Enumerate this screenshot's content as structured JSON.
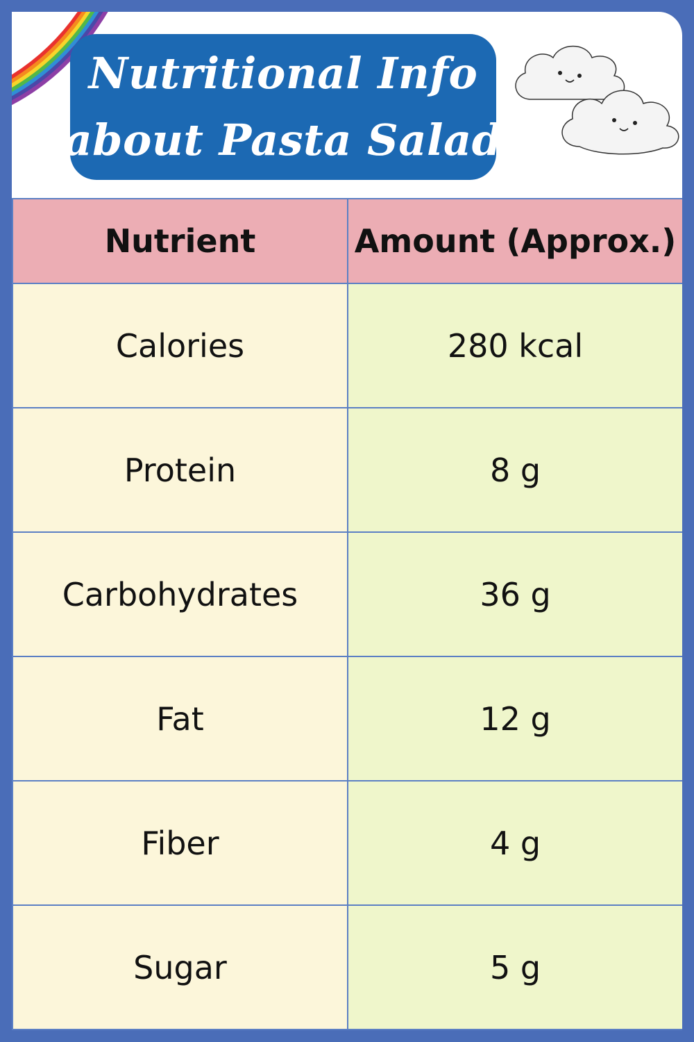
{
  "title": {
    "line1": "Nutritional Info",
    "line2": "about Pasta Salad"
  },
  "colors": {
    "frame": "#4a6db8",
    "title_box": "#1c69b3",
    "header_row": "#ecadb4",
    "nutrient_cell": "#fcf6da",
    "amount_cell": "#eff6cb"
  },
  "decorations": [
    "rainbow-icon",
    "cloud-icon"
  ],
  "table": {
    "headers": [
      "Nutrient",
      "Amount (Approx.)"
    ],
    "rows": [
      {
        "nutrient": "Calories",
        "amount": "280 kcal"
      },
      {
        "nutrient": "Protein",
        "amount": "8 g"
      },
      {
        "nutrient": "Carbohydrates",
        "amount": "36 g"
      },
      {
        "nutrient": "Fat",
        "amount": "12 g"
      },
      {
        "nutrient": "Fiber",
        "amount": "4 g"
      },
      {
        "nutrient": "Sugar",
        "amount": "5 g"
      }
    ]
  }
}
